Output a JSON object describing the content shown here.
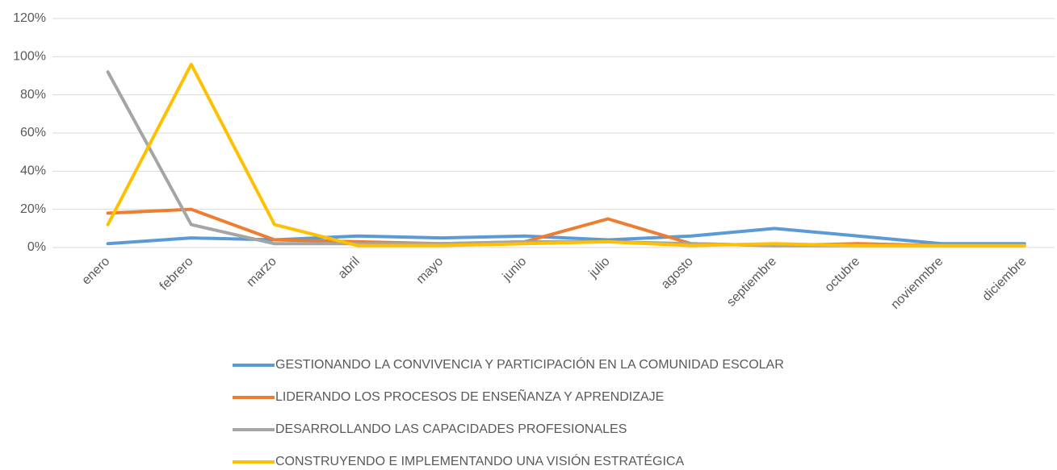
{
  "chart_data": {
    "type": "line",
    "categories": [
      "enero",
      "febrero",
      "marzo",
      "abril",
      "mayo",
      "junio",
      "julio",
      "agosto",
      "septiembre",
      "octubre",
      "novienmbre",
      "diciembre"
    ],
    "series": [
      {
        "name": "GESTIONANDO LA CONVIVENCIA Y PARTICIPACIÓN EN LA COMUNIDAD ESCOLAR",
        "color": "#5b9bd5",
        "values": [
          2,
          5,
          4,
          6,
          5,
          6,
          4,
          6,
          10,
          6,
          2,
          2
        ]
      },
      {
        "name": "LIDERANDO LOS PROCESOS DE ENSEÑANZA Y APRENDIZAJE",
        "color": "#ed7d31",
        "values": [
          18,
          20,
          4,
          3,
          2,
          3,
          15,
          2,
          1,
          2,
          1,
          1
        ]
      },
      {
        "name": "DESARROLLANDO LAS CAPACIDADES PROFESIONALES",
        "color": "#a5a5a5",
        "values": [
          92,
          12,
          2,
          2,
          2,
          3,
          3,
          2,
          1,
          1,
          1,
          1
        ]
      },
      {
        "name": "CONSTRUYENDO E IMPLEMENTANDO UNA VISIÓN ESTRATÉGICA",
        "color": "#ffc000",
        "values": [
          12,
          96,
          12,
          1,
          1,
          2,
          3,
          1,
          2,
          1,
          1,
          1
        ]
      }
    ],
    "ylim": [
      0,
      120
    ],
    "yticks": [
      {
        "value": 0,
        "label": "0%"
      },
      {
        "value": 20,
        "label": "20%"
      },
      {
        "value": 40,
        "label": "40%"
      },
      {
        "value": 60,
        "label": "60%"
      },
      {
        "value": 80,
        "label": "80%"
      },
      {
        "value": 100,
        "label": "100%"
      },
      {
        "value": 120,
        "label": "120%"
      }
    ],
    "grid": true,
    "legend": "bottom"
  }
}
